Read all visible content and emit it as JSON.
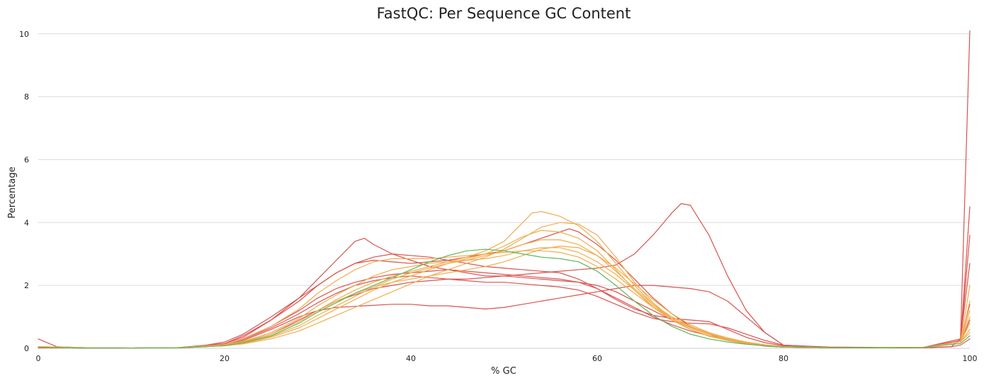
{
  "chart_data": {
    "type": "line",
    "title": "FastQC: Per Sequence GC Content",
    "xlabel": "% GC",
    "ylabel": "Percentage",
    "xlim": [
      0,
      100
    ],
    "ylim": [
      0,
      10.4
    ],
    "x_ticks": [
      0,
      20,
      40,
      60,
      80,
      100
    ],
    "y_ticks": [
      0,
      2,
      4,
      6,
      8,
      10
    ],
    "grid": true,
    "legend": "none",
    "status_colors": {
      "pass": "#5cb85c",
      "warn": "#f0ad4e",
      "fail": "#d9534f"
    },
    "series": [
      {
        "status": "fail",
        "x": [
          0,
          2,
          5,
          10,
          15,
          18,
          20,
          22,
          25,
          28,
          30,
          32,
          34,
          36,
          38,
          40,
          42,
          44,
          46,
          48,
          50,
          52,
          54,
          56,
          58,
          60,
          62,
          64,
          66,
          68,
          69,
          70,
          72,
          74,
          76,
          78,
          80,
          85,
          90,
          95,
          98,
          99,
          100
        ],
        "y": [
          0.3,
          0.05,
          0.02,
          0.01,
          0.01,
          0.05,
          0.1,
          0.2,
          0.45,
          0.9,
          1.2,
          1.5,
          1.7,
          1.9,
          2.0,
          2.1,
          2.15,
          2.2,
          2.2,
          2.25,
          2.3,
          2.35,
          2.4,
          2.45,
          2.5,
          2.55,
          2.65,
          3.0,
          3.6,
          4.3,
          4.6,
          4.55,
          3.6,
          2.3,
          1.2,
          0.5,
          0.1,
          0.03,
          0.02,
          0.02,
          0.05,
          0.1,
          0.3
        ]
      },
      {
        "status": "fail",
        "x": [
          0,
          2,
          5,
          10,
          15,
          18,
          20,
          22,
          25,
          28,
          30,
          32,
          34,
          35,
          36,
          38,
          40,
          42,
          44,
          46,
          48,
          50,
          52,
          54,
          56,
          58,
          60,
          62,
          64,
          66,
          68,
          70,
          72,
          74,
          76,
          78,
          80,
          85,
          90,
          95,
          98,
          99,
          100
        ],
        "y": [
          0.05,
          0.02,
          0.01,
          0.01,
          0.02,
          0.08,
          0.15,
          0.4,
          0.9,
          1.6,
          2.2,
          2.8,
          3.4,
          3.5,
          3.3,
          3.0,
          2.8,
          2.6,
          2.5,
          2.4,
          2.3,
          2.3,
          2.25,
          2.2,
          2.15,
          2.1,
          2.0,
          1.8,
          1.5,
          1.2,
          0.9,
          0.6,
          0.4,
          0.25,
          0.15,
          0.08,
          0.04,
          0.02,
          0.02,
          0.02,
          0.05,
          0.3,
          10.1
        ]
      },
      {
        "status": "fail",
        "x": [
          0,
          5,
          10,
          15,
          20,
          22,
          25,
          28,
          30,
          32,
          35,
          38,
          40,
          42,
          44,
          46,
          48,
          50,
          52,
          54,
          56,
          58,
          60,
          62,
          64,
          66,
          68,
          70,
          72,
          74,
          76,
          78,
          80,
          85,
          90,
          95,
          99,
          100
        ],
        "y": [
          0.02,
          0.01,
          0.01,
          0.02,
          0.1,
          0.25,
          0.6,
          1.0,
          1.2,
          1.3,
          1.35,
          1.4,
          1.4,
          1.35,
          1.35,
          1.3,
          1.25,
          1.3,
          1.4,
          1.5,
          1.6,
          1.7,
          1.8,
          1.9,
          2.0,
          2.0,
          1.95,
          1.9,
          1.8,
          1.5,
          1.0,
          0.5,
          0.1,
          0.04,
          0.03,
          0.03,
          0.2,
          4.5
        ]
      },
      {
        "status": "fail",
        "x": [
          0,
          5,
          10,
          15,
          18,
          20,
          22,
          25,
          28,
          30,
          32,
          34,
          36,
          38,
          40,
          42,
          44,
          46,
          48,
          50,
          52,
          54,
          56,
          57,
          58,
          60,
          62,
          64,
          66,
          68,
          70,
          72,
          74,
          76,
          78,
          80,
          85,
          90,
          95,
          99,
          100
        ],
        "y": [
          0.02,
          0.01,
          0.01,
          0.02,
          0.1,
          0.2,
          0.45,
          1.0,
          1.6,
          2.0,
          2.4,
          2.7,
          2.8,
          2.75,
          2.7,
          2.75,
          2.8,
          2.9,
          3.0,
          3.1,
          3.3,
          3.5,
          3.7,
          3.8,
          3.7,
          3.3,
          2.8,
          2.2,
          1.6,
          1.1,
          0.7,
          0.45,
          0.25,
          0.15,
          0.07,
          0.04,
          0.02,
          0.02,
          0.03,
          0.2,
          3.6
        ]
      },
      {
        "status": "fail",
        "x": [
          0,
          5,
          10,
          15,
          20,
          22,
          25,
          28,
          30,
          32,
          34,
          36,
          38,
          40,
          42,
          44,
          46,
          48,
          50,
          52,
          54,
          56,
          58,
          60,
          62,
          64,
          66,
          68,
          70,
          72,
          74,
          76,
          78,
          80,
          85,
          90,
          95,
          99,
          100
        ],
        "y": [
          0.02,
          0.01,
          0.01,
          0.02,
          0.12,
          0.3,
          0.7,
          1.2,
          1.6,
          1.9,
          2.1,
          2.25,
          2.35,
          2.4,
          2.45,
          2.5,
          2.45,
          2.4,
          2.35,
          2.3,
          2.25,
          2.2,
          2.1,
          1.9,
          1.6,
          1.3,
          1.0,
          0.75,
          0.55,
          0.4,
          0.28,
          0.18,
          0.1,
          0.05,
          0.02,
          0.02,
          0.03,
          0.3,
          2.7
        ]
      },
      {
        "status": "fail",
        "x": [
          0,
          5,
          10,
          15,
          20,
          22,
          25,
          28,
          30,
          32,
          34,
          36,
          38,
          40,
          42,
          44,
          46,
          48,
          50,
          52,
          54,
          56,
          58,
          60,
          62,
          64,
          66,
          68,
          70,
          72,
          74,
          76,
          78,
          80,
          85,
          90,
          95,
          99,
          100
        ],
        "y": [
          0.02,
          0.01,
          0.01,
          0.02,
          0.15,
          0.35,
          0.9,
          1.5,
          2.0,
          2.4,
          2.7,
          2.9,
          3.0,
          2.95,
          2.9,
          2.8,
          2.7,
          2.6,
          2.55,
          2.5,
          2.45,
          2.4,
          2.2,
          1.9,
          1.55,
          1.25,
          1.05,
          0.95,
          0.9,
          0.85,
          0.6,
          0.35,
          0.18,
          0.08,
          0.03,
          0.02,
          0.03,
          0.25,
          1.4
        ]
      },
      {
        "status": "fail",
        "x": [
          0,
          5,
          10,
          15,
          20,
          22,
          25,
          28,
          30,
          32,
          34,
          36,
          38,
          40,
          42,
          44,
          46,
          48,
          50,
          52,
          54,
          56,
          58,
          60,
          62,
          64,
          66,
          68,
          70,
          72,
          74,
          76,
          78,
          80,
          85,
          90,
          95,
          99,
          100
        ],
        "y": [
          0.02,
          0.01,
          0.01,
          0.02,
          0.12,
          0.28,
          0.65,
          1.1,
          1.45,
          1.75,
          2.0,
          2.15,
          2.25,
          2.3,
          2.25,
          2.2,
          2.15,
          2.1,
          2.1,
          2.05,
          2.0,
          1.95,
          1.85,
          1.65,
          1.4,
          1.15,
          0.95,
          0.85,
          0.8,
          0.78,
          0.65,
          0.45,
          0.25,
          0.1,
          0.03,
          0.02,
          0.03,
          0.2,
          0.9
        ]
      },
      {
        "status": "warn",
        "x": [
          0,
          5,
          10,
          15,
          20,
          22,
          25,
          28,
          30,
          32,
          34,
          36,
          38,
          40,
          42,
          44,
          46,
          48,
          50,
          52,
          53,
          54,
          56,
          58,
          60,
          62,
          64,
          66,
          68,
          70,
          72,
          74,
          76,
          78,
          80,
          85,
          90,
          95,
          99,
          100
        ],
        "y": [
          0.05,
          0.02,
          0.01,
          0.02,
          0.1,
          0.2,
          0.45,
          0.85,
          1.2,
          1.55,
          1.85,
          2.1,
          2.3,
          2.45,
          2.6,
          2.75,
          2.9,
          3.1,
          3.4,
          4.0,
          4.3,
          4.35,
          4.2,
          3.9,
          3.4,
          2.7,
          2.0,
          1.4,
          0.95,
          0.65,
          0.45,
          0.3,
          0.18,
          0.1,
          0.05,
          0.02,
          0.02,
          0.03,
          0.2,
          2.0
        ]
      },
      {
        "status": "warn",
        "x": [
          0,
          5,
          10,
          15,
          20,
          22,
          25,
          28,
          30,
          32,
          34,
          36,
          38,
          40,
          42,
          44,
          46,
          48,
          50,
          52,
          54,
          56,
          58,
          60,
          62,
          64,
          66,
          68,
          70,
          72,
          74,
          76,
          78,
          80,
          85,
          90,
          95,
          99,
          100
        ],
        "y": [
          0.05,
          0.02,
          0.01,
          0.02,
          0.08,
          0.15,
          0.35,
          0.65,
          0.95,
          1.25,
          1.55,
          1.85,
          2.1,
          2.3,
          2.5,
          2.7,
          2.85,
          3.0,
          3.25,
          3.55,
          3.75,
          3.7,
          3.5,
          3.1,
          2.5,
          1.85,
          1.3,
          0.9,
          0.6,
          0.4,
          0.28,
          0.18,
          0.1,
          0.05,
          0.02,
          0.02,
          0.03,
          0.2,
          1.5
        ]
      },
      {
        "status": "warn",
        "x": [
          0,
          5,
          10,
          15,
          20,
          22,
          25,
          28,
          30,
          32,
          34,
          36,
          38,
          40,
          42,
          44,
          46,
          48,
          50,
          52,
          54,
          56,
          58,
          60,
          62,
          64,
          66,
          68,
          70,
          72,
          74,
          76,
          78,
          80,
          85,
          90,
          95,
          99,
          100
        ],
        "y": [
          0.05,
          0.02,
          0.01,
          0.02,
          0.08,
          0.16,
          0.38,
          0.72,
          1.05,
          1.35,
          1.65,
          1.95,
          2.2,
          2.4,
          2.55,
          2.7,
          2.8,
          2.95,
          3.1,
          3.3,
          3.45,
          3.45,
          3.3,
          2.95,
          2.45,
          1.9,
          1.4,
          1.0,
          0.7,
          0.48,
          0.32,
          0.2,
          0.11,
          0.06,
          0.02,
          0.02,
          0.03,
          0.2,
          1.2
        ]
      },
      {
        "status": "warn",
        "x": [
          0,
          5,
          10,
          15,
          20,
          22,
          25,
          28,
          30,
          32,
          34,
          36,
          38,
          40,
          42,
          44,
          46,
          48,
          50,
          52,
          54,
          56,
          58,
          60,
          62,
          64,
          66,
          68,
          70,
          72,
          74,
          76,
          78,
          80,
          85,
          90,
          95,
          99,
          100
        ],
        "y": [
          0.05,
          0.02,
          0.01,
          0.02,
          0.1,
          0.22,
          0.5,
          0.95,
          1.35,
          1.7,
          2.0,
          2.3,
          2.5,
          2.6,
          2.7,
          2.75,
          2.8,
          2.85,
          2.95,
          3.1,
          3.2,
          3.2,
          3.05,
          2.75,
          2.35,
          1.85,
          1.35,
          0.95,
          0.65,
          0.45,
          0.3,
          0.19,
          0.1,
          0.05,
          0.02,
          0.02,
          0.03,
          0.2,
          0.8
        ]
      },
      {
        "status": "warn",
        "x": [
          0,
          5,
          10,
          15,
          20,
          22,
          25,
          28,
          30,
          32,
          34,
          36,
          38,
          40,
          42,
          44,
          46,
          48,
          50,
          52,
          54,
          56,
          58,
          60,
          62,
          64,
          66,
          68,
          70,
          72,
          74,
          76,
          78,
          80,
          85,
          90,
          95,
          99,
          100
        ],
        "y": [
          0.05,
          0.02,
          0.01,
          0.02,
          0.12,
          0.28,
          0.7,
          1.25,
          1.75,
          2.15,
          2.5,
          2.75,
          2.85,
          2.85,
          2.85,
          2.9,
          2.95,
          3.0,
          3.05,
          3.1,
          3.1,
          3.05,
          2.9,
          2.6,
          2.2,
          1.75,
          1.3,
          0.95,
          0.68,
          0.48,
          0.32,
          0.2,
          0.1,
          0.05,
          0.02,
          0.02,
          0.03,
          0.2,
          0.6
        ]
      },
      {
        "status": "warn",
        "x": [
          0,
          5,
          10,
          15,
          20,
          22,
          25,
          28,
          30,
          32,
          34,
          36,
          38,
          40,
          42,
          44,
          46,
          48,
          50,
          52,
          54,
          56,
          58,
          60,
          62,
          64,
          66,
          68,
          70,
          72,
          74,
          76,
          78,
          80,
          85,
          90,
          95,
          99,
          100
        ],
        "y": [
          0.05,
          0.02,
          0.01,
          0.02,
          0.08,
          0.14,
          0.3,
          0.55,
          0.8,
          1.05,
          1.3,
          1.55,
          1.8,
          2.05,
          2.3,
          2.5,
          2.7,
          2.9,
          3.15,
          3.5,
          3.85,
          4.0,
          3.95,
          3.6,
          2.9,
          2.1,
          1.45,
          0.95,
          0.6,
          0.38,
          0.25,
          0.15,
          0.08,
          0.04,
          0.02,
          0.02,
          0.03,
          0.2,
          1.0
        ]
      },
      {
        "status": "warn",
        "x": [
          0,
          5,
          10,
          15,
          20,
          22,
          25,
          28,
          30,
          32,
          34,
          36,
          38,
          40,
          42,
          44,
          46,
          48,
          50,
          52,
          54,
          56,
          58,
          60,
          62,
          64,
          66,
          68,
          70,
          72,
          74,
          76,
          78,
          80,
          85,
          90,
          95,
          99,
          100
        ],
        "y": [
          0.05,
          0.02,
          0.01,
          0.02,
          0.1,
          0.2,
          0.45,
          0.85,
          1.2,
          1.5,
          1.75,
          1.95,
          2.1,
          2.2,
          2.3,
          2.4,
          2.5,
          2.6,
          2.75,
          2.95,
          3.15,
          3.25,
          3.2,
          2.95,
          2.55,
          2.05,
          1.55,
          1.1,
          0.75,
          0.5,
          0.33,
          0.2,
          0.11,
          0.05,
          0.02,
          0.02,
          0.03,
          0.2,
          0.5
        ]
      },
      {
        "status": "pass",
        "x": [
          0,
          5,
          10,
          15,
          20,
          22,
          25,
          28,
          30,
          32,
          34,
          36,
          38,
          40,
          42,
          44,
          46,
          48,
          50,
          52,
          54,
          56,
          58,
          60,
          62,
          64,
          66,
          68,
          70,
          72,
          74,
          76,
          78,
          80,
          85,
          90,
          95,
          99,
          100
        ],
        "y": [
          0.03,
          0.01,
          0.01,
          0.02,
          0.08,
          0.18,
          0.4,
          0.8,
          1.15,
          1.45,
          1.75,
          2.0,
          2.25,
          2.5,
          2.75,
          2.95,
          3.1,
          3.15,
          3.1,
          3.0,
          2.9,
          2.85,
          2.75,
          2.45,
          2.0,
          1.5,
          1.05,
          0.7,
          0.45,
          0.3,
          0.2,
          0.13,
          0.08,
          0.04,
          0.02,
          0.02,
          0.03,
          0.15,
          0.4
        ]
      }
    ]
  }
}
